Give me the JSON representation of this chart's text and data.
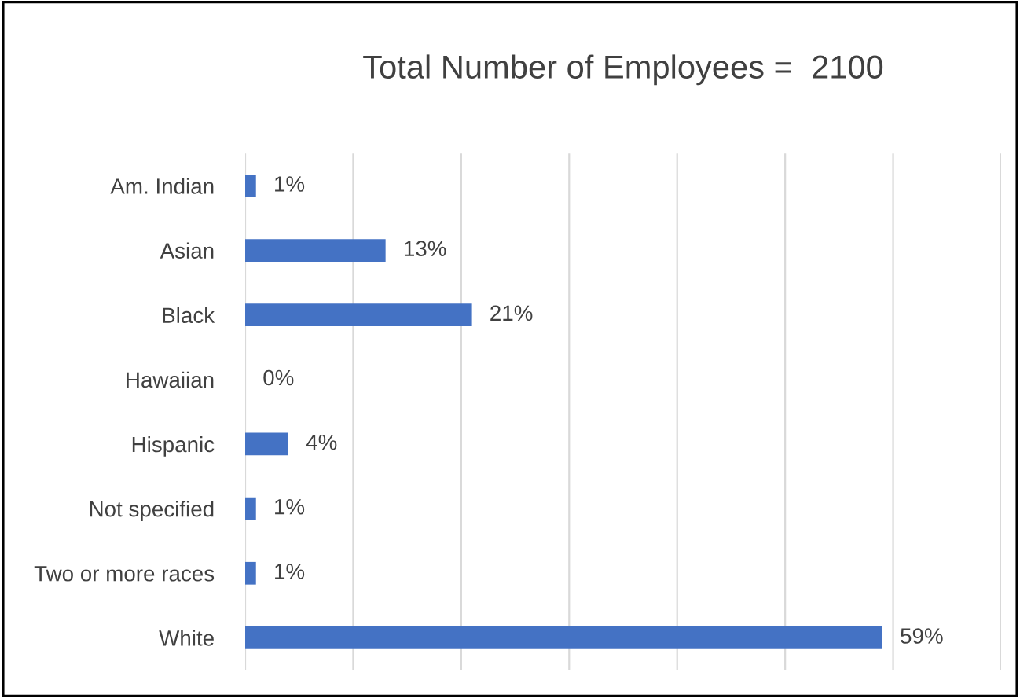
{
  "chart_data": {
    "type": "bar",
    "orientation": "horizontal",
    "title": "Total Number of Employees =  2100",
    "categories": [
      "Am. Indian",
      "Asian",
      "Black",
      "Hawaiian",
      "Hispanic",
      "Not specified",
      "Two or more races",
      "White"
    ],
    "values": [
      1,
      13,
      21,
      0,
      4,
      1,
      1,
      59
    ],
    "value_labels": [
      "1%",
      "13%",
      "21%",
      "0%",
      "4%",
      "1%",
      "1%",
      "59%"
    ],
    "color": "#4472c4",
    "xlim": [
      0,
      70
    ],
    "xticks": [
      {
        "value": 0,
        "label": null
      },
      {
        "value": 10,
        "label": null
      },
      {
        "value": 20,
        "label": null
      },
      {
        "value": 30,
        "label": null
      },
      {
        "value": 40,
        "label": null
      },
      {
        "value": 50,
        "label": null
      },
      {
        "value": 60,
        "label": null
      },
      {
        "value": 70,
        "label": null
      }
    ],
    "tick_labels": "y",
    "grid": "x"
  }
}
